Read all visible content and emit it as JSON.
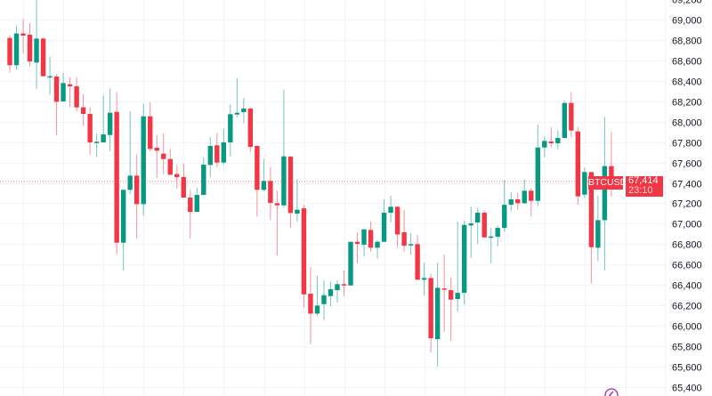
{
  "chart_data": {
    "type": "candlestick",
    "symbol": "BTCUSD",
    "last_price": "67,414",
    "countdown": "23:10",
    "colors": {
      "up": "#089981",
      "down": "#f23645",
      "grid": "#f0f3fa",
      "last_price_line": "#f23645",
      "scroll_icon": "#9c27b0"
    },
    "ylim": [
      65400,
      69200
    ],
    "y_ticks": [
      "65,400",
      "65,600",
      "65,800",
      "66,000",
      "66,200",
      "66,400",
      "66,600",
      "66,800",
      "67,000",
      "67,200",
      "67,400",
      "67,600",
      "67,800",
      "68,000",
      "68,200",
      "68,400",
      "68,600",
      "68,800",
      "69,000",
      "69,200"
    ],
    "y_tick_values": [
      65400,
      65600,
      65800,
      66000,
      66200,
      66400,
      66600,
      66800,
      67000,
      67200,
      67400,
      67600,
      67800,
      68000,
      68200,
      68400,
      68600,
      68800,
      69000,
      69200
    ],
    "grid": true,
    "ohlc": [
      [
        68820,
        68843,
        68480,
        68553
      ],
      [
        68553,
        68936,
        68509,
        68864
      ],
      [
        68864,
        69003,
        68669,
        68843
      ],
      [
        68852,
        68965,
        68541,
        68590
      ],
      [
        68579,
        69250,
        68320,
        68814
      ],
      [
        68814,
        68823,
        68445,
        68445
      ],
      [
        68440,
        68640,
        68262,
        68445
      ],
      [
        68442,
        68465,
        67866,
        68195
      ],
      [
        68198,
        68477,
        68198,
        68378
      ],
      [
        68366,
        68436,
        68145,
        68346
      ],
      [
        68346,
        68436,
        68099,
        68140
      ],
      [
        68140,
        68268,
        67959,
        68076
      ],
      [
        68076,
        68140,
        67680,
        67797
      ],
      [
        67802,
        67884,
        67651,
        67803
      ],
      [
        67797,
        68256,
        67797,
        67875
      ],
      [
        67869,
        68326,
        67709,
        68087
      ],
      [
        68096,
        68291,
        66701,
        66814
      ],
      [
        66814,
        67332,
        66541,
        67332
      ],
      [
        67332,
        68102,
        67288,
        67471
      ],
      [
        67471,
        67680,
        66852,
        67192
      ],
      [
        67192,
        68175,
        67076,
        68052
      ],
      [
        68052,
        68189,
        67709,
        67733
      ],
      [
        67744,
        67869,
        67448,
        67715
      ],
      [
        67686,
        67884,
        67486,
        67634
      ],
      [
        67634,
        67733,
        67477,
        67480
      ],
      [
        67486,
        67573,
        67346,
        67457
      ],
      [
        67457,
        67587,
        67256,
        67256
      ],
      [
        67256,
        67332,
        66858,
        67116
      ],
      [
        67116,
        67355,
        67116,
        67282
      ],
      [
        67282,
        67651,
        67282,
        67579
      ],
      [
        67576,
        67849,
        67457,
        67762
      ],
      [
        67768,
        67890,
        67555,
        67599
      ],
      [
        67599,
        67927,
        67579,
        67797
      ],
      [
        67797,
        68169,
        67660,
        68073
      ],
      [
        68070,
        68427,
        68044,
        68087
      ],
      [
        68093,
        68233,
        67985,
        68128
      ],
      [
        68128,
        68140,
        67704,
        67753
      ],
      [
        67762,
        67768,
        67070,
        67332
      ],
      [
        67332,
        67637,
        67317,
        67419
      ],
      [
        67419,
        67555,
        67035,
        67204
      ],
      [
        67201,
        67323,
        66686,
        67180
      ],
      [
        67180,
        68314,
        67157,
        67660
      ],
      [
        67657,
        67666,
        66962,
        67105
      ],
      [
        67099,
        67439,
        67020,
        67137
      ],
      [
        67151,
        67186,
        66178,
        66308
      ],
      [
        66314,
        66576,
        65820,
        66119
      ],
      [
        66119,
        66489,
        66096,
        66198
      ],
      [
        66212,
        66445,
        66058,
        66300
      ],
      [
        66291,
        66431,
        66189,
        66358
      ],
      [
        66349,
        66445,
        66227,
        66408
      ],
      [
        66408,
        66541,
        66291,
        66395
      ],
      [
        66395,
        66823,
        66395,
        66823
      ],
      [
        66823,
        66910,
        66611,
        66803
      ],
      [
        66794,
        66945,
        66678,
        66945
      ],
      [
        66939,
        67020,
        66727,
        66765
      ],
      [
        66765,
        66837,
        66657,
        66823
      ],
      [
        66823,
        67239,
        66823,
        67108
      ],
      [
        67108,
        67273,
        67012,
        67166
      ],
      [
        67166,
        67172,
        66765,
        66895
      ],
      [
        66916,
        67134,
        66727,
        66785
      ],
      [
        66797,
        66910,
        66698,
        66800
      ],
      [
        66800,
        66887,
        66451,
        66451
      ],
      [
        66451,
        66619,
        66300,
        66468
      ],
      [
        66468,
        66512,
        65738,
        65878
      ],
      [
        65869,
        66619,
        65602,
        66372
      ],
      [
        66366,
        66698,
        65942,
        66358
      ],
      [
        66349,
        66474,
        65855,
        66256
      ],
      [
        66262,
        67020,
        66140,
        66323
      ],
      [
        66323,
        67032,
        66207,
        66988
      ],
      [
        66983,
        67166,
        66663,
        67003
      ],
      [
        67012,
        67157,
        66800,
        67108
      ],
      [
        67108,
        67128,
        66866,
        66866
      ],
      [
        66866,
        66962,
        66614,
        66875
      ],
      [
        66872,
        66983,
        66779,
        66959
      ],
      [
        66959,
        67428,
        66919,
        67186
      ],
      [
        67186,
        67308,
        67122,
        67239
      ],
      [
        67239,
        67303,
        67137,
        67201
      ],
      [
        67201,
        67433,
        67195,
        67323
      ],
      [
        67323,
        67346,
        67070,
        67224
      ],
      [
        67224,
        67971,
        67172,
        67747
      ],
      [
        67747,
        67855,
        67651,
        67811
      ],
      [
        67805,
        67948,
        67747,
        67788
      ],
      [
        67788,
        67913,
        67724,
        67840
      ],
      [
        67840,
        68204,
        67835,
        68183
      ],
      [
        68183,
        68291,
        67849,
        67913
      ],
      [
        67904,
        67948,
        67186,
        67268
      ],
      [
        67285,
        67550,
        67250,
        67506
      ],
      [
        67506,
        67506,
        66416,
        66770
      ],
      [
        66765,
        67273,
        66634,
        67035
      ],
      [
        67035,
        68044,
        66541,
        67564
      ],
      [
        67564,
        67898,
        67268,
        67414
      ]
    ]
  }
}
